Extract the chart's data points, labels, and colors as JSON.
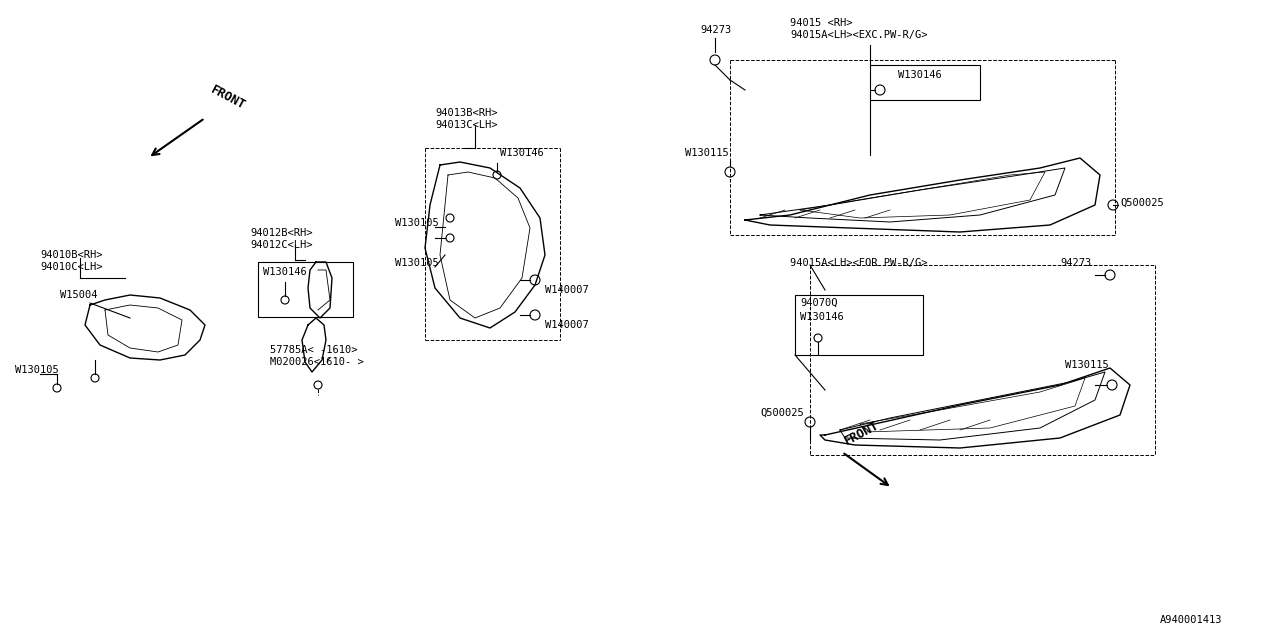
{
  "bg_color": "#ffffff",
  "line_color": "#000000",
  "fig_width": 12.8,
  "fig_height": 6.4,
  "watermark": "A940001413",
  "labels": {
    "94010B_RH": "94010B<RH>",
    "94010C_LH": "94010C<LH>",
    "W15004": "W15004",
    "W130105": "W130105",
    "94012B_RH": "94012B<RH>",
    "94012C_LH": "94012C<LH>",
    "W130146": "W130146",
    "57785A": "57785A< -1610>",
    "M020026": "M020026<1610- >",
    "94013B_RH": "94013B<RH>",
    "94013C_LH": "94013C<LH>",
    "W140007": "W140007",
    "94273": "94273",
    "94015_RH": "94015 <RH>",
    "94015A_LH_exc": "94015A<LH><EXC.PW-R/G>",
    "W130115": "W130115",
    "Q500025": "Q500025",
    "94015A_LH_for": "94015A<LH><FOR PW-R/G>",
    "94070Q": "94070Q",
    "FRONT": "FRONT"
  }
}
